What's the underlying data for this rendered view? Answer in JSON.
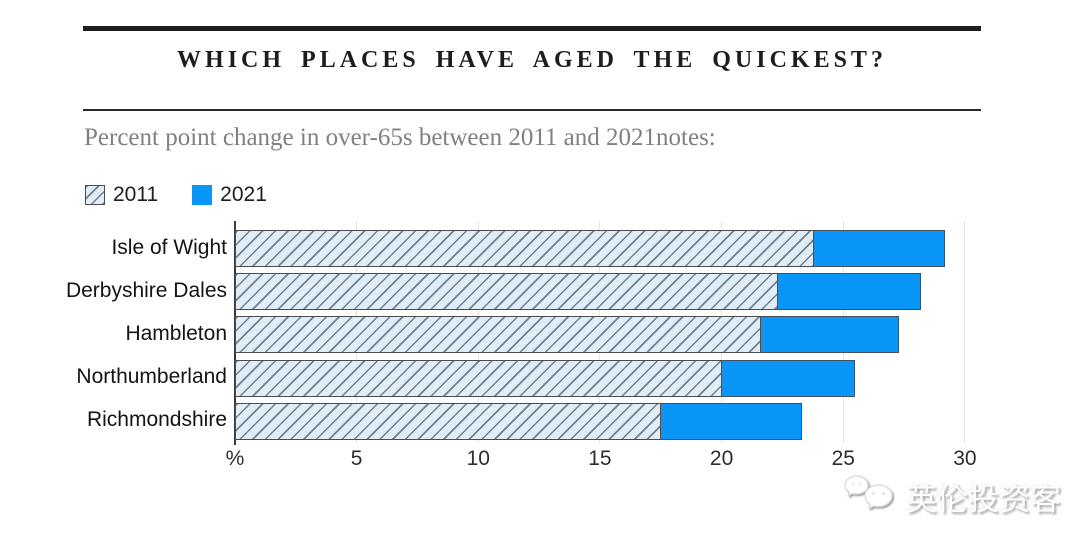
{
  "header": {
    "title": "WHICH PLACES HAVE AGED THE QUICKEST?",
    "subtitle": "Percent point change in over-65s between 2011 and 2021notes:"
  },
  "legend": {
    "items": [
      {
        "label": "2011",
        "swatch": "hatched-swatch"
      },
      {
        "label": "2021",
        "swatch": "solid-swatch"
      }
    ]
  },
  "chart_data": {
    "type": "bar",
    "orientation": "horizontal",
    "title": "WHICH PLACES HAVE AGED THE QUICKEST?",
    "subtitle": "Percent point change in over-65s between 2011 and 2021notes:",
    "categories": [
      "Isle of Wight",
      "Derbyshire Dales",
      "Hambleton",
      "Northumberland",
      "Richmondshire"
    ],
    "series": [
      {
        "name": "2011",
        "style": "hatched",
        "values": [
          23.8,
          22.3,
          21.6,
          20.0,
          17.5
        ]
      },
      {
        "name": "2021",
        "style": "solid",
        "values": [
          29.2,
          28.2,
          27.3,
          25.5,
          23.3
        ]
      }
    ],
    "xlabel": "%",
    "x_ticks": [
      "%",
      "5",
      "10",
      "15",
      "20",
      "25",
      "30"
    ],
    "x_tick_values": [
      0,
      5,
      10,
      15,
      20,
      25,
      30
    ],
    "xlim": [
      0,
      30
    ],
    "grid": "vertical-light",
    "legend_position": "top-left",
    "colors": {
      "solid_bar": "#0996f7",
      "hatch_background": "#e0edf6",
      "hatch_line": "#6e7f90",
      "bar_border": "#4d4d4d",
      "gridline": "#e4e4e4",
      "axis": "#3a3a3a",
      "title_text": "#1d1d1f",
      "subtitle_text": "#808082"
    }
  },
  "watermark": {
    "text": "英伦投资客",
    "icon": "wechat-icon"
  }
}
